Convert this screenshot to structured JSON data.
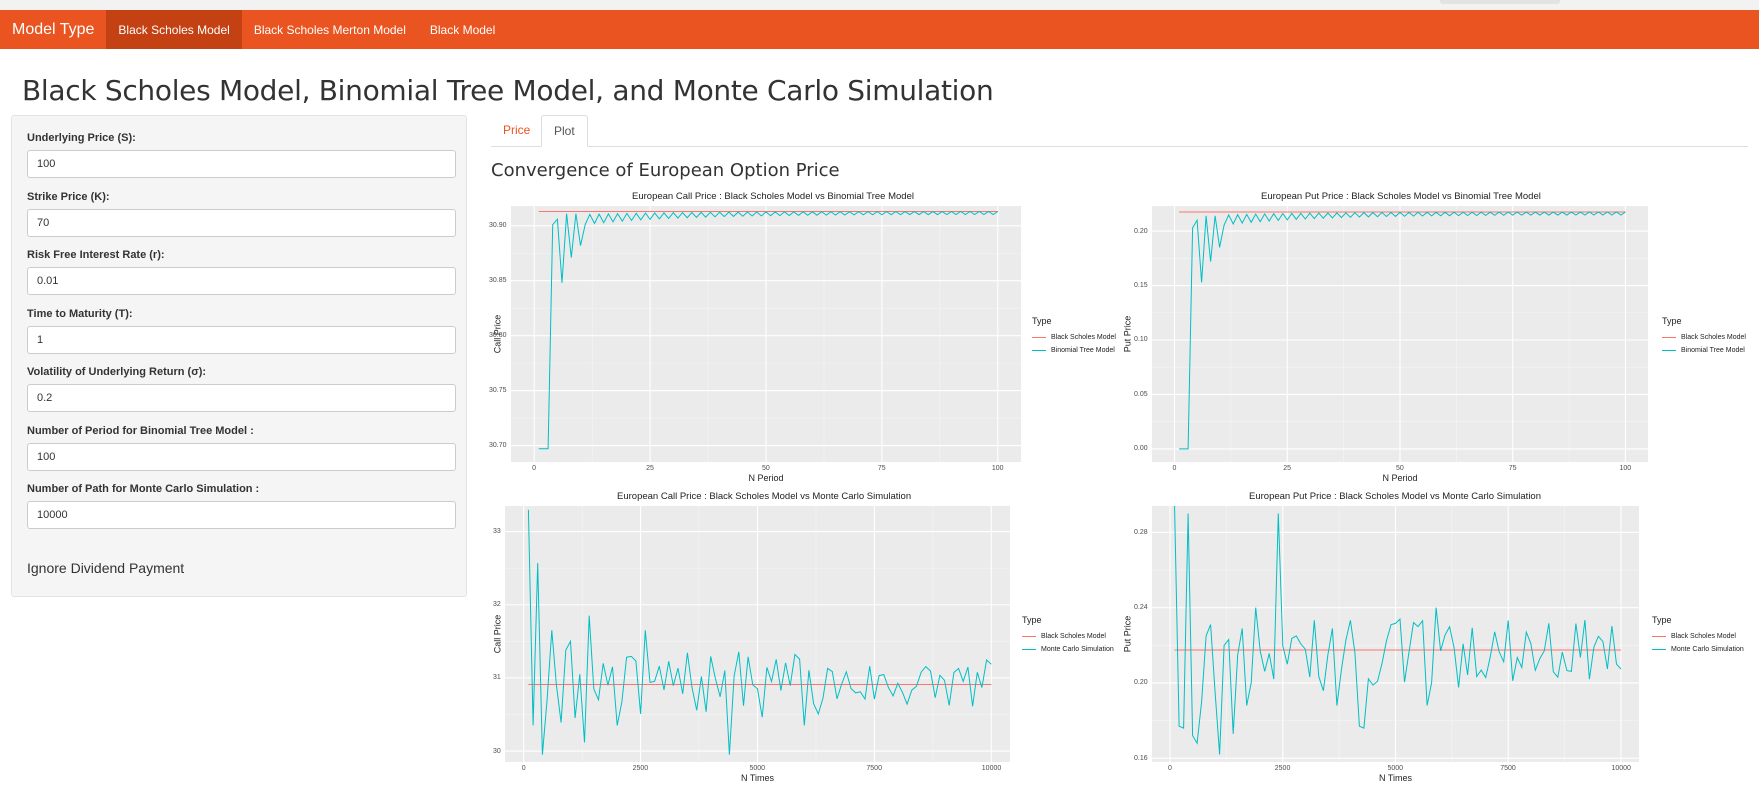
{
  "navbar": {
    "brand": "Model Type",
    "items": [
      {
        "label": "Black Scholes Model",
        "active": true
      },
      {
        "label": "Black Scholes Merton Model",
        "active": false
      },
      {
        "label": "Black Model",
        "active": false
      }
    ],
    "color": "#e95420",
    "active_color": "#c34113"
  },
  "page_title": "Black Scholes Model, Binomial Tree Model, and Monte Carlo Simulation",
  "sidebar": {
    "fields": [
      {
        "label": "Underlying Price (S):",
        "value": "100"
      },
      {
        "label": "Strike Price (K):",
        "value": "70"
      },
      {
        "label": "Risk Free Interest Rate (r):",
        "value": "0.01"
      },
      {
        "label": "Time to Maturity (T):",
        "value": "1"
      },
      {
        "label": "Volatility of Underlying Return (σ):",
        "value": "0.2"
      },
      {
        "label": "Number of Period for Binomial Tree Model :",
        "value": "100"
      },
      {
        "label": "Number of Path for Monte Carlo Simulation :",
        "value": "10000"
      }
    ],
    "dividend_label": "Ignore Dividend Payment"
  },
  "tabs": [
    {
      "label": "Price",
      "active": false
    },
    {
      "label": "Plot",
      "active": true
    }
  ],
  "section_title": "Convergence of European Option Price",
  "chart_data": [
    {
      "type": "line",
      "title": "European Call Price : Black Scholes Model vs Binomial Tree Model",
      "xlabel": "N Period",
      "ylabel": "Call Price",
      "xlim": [
        -5,
        105
      ],
      "ylim": [
        30.685,
        30.918
      ],
      "xticks": [
        0,
        25,
        50,
        75,
        100
      ],
      "yticks": [
        30.7,
        30.75,
        30.8,
        30.85,
        30.9
      ],
      "ytick_labels": [
        "30.70",
        "30.75",
        "30.80",
        "30.85",
        "30.90"
      ],
      "legend_title": "Type",
      "legend_position": "right",
      "series": [
        {
          "name": "Black Scholes Model",
          "color": "#f8766d",
          "kind": "constant",
          "x_start": 1,
          "x_end": 100,
          "value": 30.913
        },
        {
          "name": "Binomial Tree Model",
          "color": "#00bfc4",
          "kind": "binomial",
          "x_start": 1,
          "x_end": 100,
          "early": [
            30.697,
            30.697,
            30.697,
            30.901,
            30.906,
            30.848,
            30.911,
            30.871,
            30.911,
            30.882
          ],
          "target": 30.913,
          "amp0": 0.032,
          "decay": 0.05
        }
      ]
    },
    {
      "type": "line",
      "title": "European Put Price : Black Scholes Model vs Binomial Tree Model",
      "xlabel": "N Period",
      "ylabel": "Put Price",
      "xlim": [
        -5,
        105
      ],
      "ylim": [
        -0.012,
        0.223
      ],
      "xticks": [
        0,
        25,
        50,
        75,
        100
      ],
      "yticks": [
        0.0,
        0.05,
        0.1,
        0.15,
        0.2
      ],
      "ytick_labels": [
        "0.00",
        "0.05",
        "0.10",
        "0.15",
        "0.20"
      ],
      "legend_title": "Type",
      "legend_position": "right",
      "series": [
        {
          "name": "Black Scholes Model",
          "color": "#f8766d",
          "kind": "constant",
          "x_start": 1,
          "x_end": 100,
          "value": 0.2175
        },
        {
          "name": "Binomial Tree Model",
          "color": "#00bfc4",
          "kind": "binomial",
          "x_start": 1,
          "x_end": 100,
          "early": [
            0.0,
            0.0,
            0.0,
            0.203,
            0.21,
            0.153,
            0.214,
            0.172,
            0.214,
            0.185
          ],
          "target": 0.2175,
          "amp0": 0.032,
          "decay": 0.05
        }
      ]
    },
    {
      "type": "line",
      "title": "European Call Price : Black Scholes Model vs Monte Carlo Simulation",
      "xlabel": "N Times",
      "ylabel": "Call Price",
      "xlim": [
        -400,
        10400
      ],
      "ylim": [
        29.85,
        33.35
      ],
      "xticks": [
        0,
        2500,
        5000,
        7500,
        10000
      ],
      "yticks": [
        30,
        31,
        32,
        33
      ],
      "ytick_labels": [
        "30",
        "31",
        "32",
        "33"
      ],
      "legend_title": "Type",
      "legend_position": "right",
      "series": [
        {
          "name": "Black Scholes Model",
          "color": "#f8766d",
          "kind": "constant",
          "x_start": 100,
          "x_end": 10000,
          "value": 30.91
        },
        {
          "name": "Monte Carlo Simulation",
          "color": "#00bfc4",
          "kind": "mc",
          "x_start": 100,
          "x_end": 10000,
          "step": 100,
          "center": 30.91,
          "spikes": [
            33.3,
            30.35,
            32.57,
            29.95,
            30.7,
            31.65,
            30.9,
            30.39,
            31.38,
            31.5,
            30.45,
            31.05,
            30.12,
            31.85,
            30.85,
            30.7,
            31.2,
            30.9,
            31.15,
            30.35
          ],
          "amp": 0.45,
          "seed": 7
        }
      ]
    },
    {
      "type": "line",
      "title": "European Put Price : Black Scholes Model vs Monte Carlo Simulation",
      "xlabel": "N Times",
      "ylabel": "Put Price",
      "xlim": [
        -400,
        10400
      ],
      "ylim": [
        0.158,
        0.294
      ],
      "xticks": [
        0,
        2500,
        5000,
        7500,
        10000
      ],
      "yticks": [
        0.16,
        0.2,
        0.24,
        0.28
      ],
      "ytick_labels": [
        "0.16",
        "0.20",
        "0.24",
        "0.28"
      ],
      "legend_title": "Type",
      "legend_position": "right",
      "series": [
        {
          "name": "Black Scholes Model",
          "color": "#f8766d",
          "kind": "constant",
          "x_start": 100,
          "x_end": 10000,
          "value": 0.2175
        },
        {
          "name": "Monte Carlo Simulation",
          "color": "#00bfc4",
          "kind": "mc",
          "x_start": 100,
          "x_end": 10000,
          "step": 100,
          "center": 0.2175,
          "spikes": [
            0.2955,
            0.177,
            0.176,
            0.29,
            0.172,
            0.168,
            0.19,
            0.225,
            0.231,
            0.195,
            0.162,
            0.22,
            0.223,
            0.173,
            0.215,
            0.229,
            0.188,
            0.2,
            0.24,
            0.217
          ],
          "amp": 0.022,
          "seed": 13
        }
      ]
    }
  ]
}
